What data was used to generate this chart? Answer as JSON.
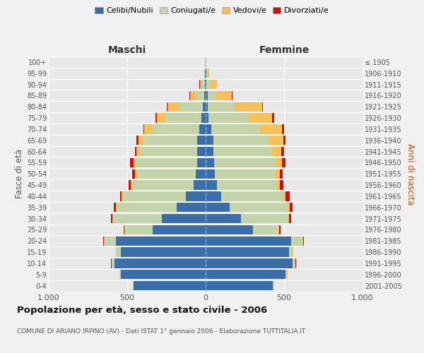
{
  "age_groups": [
    "0-4",
    "5-9",
    "10-14",
    "15-19",
    "20-24",
    "25-29",
    "30-34",
    "35-39",
    "40-44",
    "45-49",
    "50-54",
    "55-59",
    "60-64",
    "65-69",
    "70-74",
    "75-79",
    "80-84",
    "85-89",
    "90-94",
    "95-99",
    "100+"
  ],
  "birth_years": [
    "2001-2005",
    "1996-2000",
    "1991-1995",
    "1986-1990",
    "1981-1985",
    "1976-1980",
    "1971-1975",
    "1966-1970",
    "1961-1965",
    "1956-1960",
    "1951-1955",
    "1946-1950",
    "1941-1945",
    "1936-1940",
    "1931-1935",
    "1926-1930",
    "1921-1925",
    "1916-1920",
    "1911-1915",
    "1906-1910",
    "≤ 1905"
  ],
  "maschi": {
    "celibe": [
      460,
      540,
      580,
      540,
      570,
      340,
      280,
      185,
      125,
      78,
      62,
      56,
      52,
      55,
      40,
      28,
      18,
      10,
      5,
      3,
      2
    ],
    "coniugato": [
      5,
      10,
      20,
      30,
      75,
      175,
      310,
      380,
      400,
      390,
      380,
      390,
      370,
      340,
      300,
      230,
      150,
      50,
      18,
      5,
      2
    ],
    "vedovo": [
      0,
      1,
      1,
      2,
      5,
      3,
      5,
      5,
      10,
      8,
      10,
      15,
      20,
      35,
      50,
      55,
      75,
      40,
      15,
      2,
      0
    ],
    "divorziato": [
      0,
      0,
      1,
      2,
      5,
      5,
      10,
      15,
      10,
      15,
      18,
      20,
      10,
      10,
      8,
      5,
      3,
      2,
      2,
      0,
      0
    ]
  },
  "femmine": {
    "nubile": [
      430,
      510,
      555,
      530,
      545,
      300,
      225,
      155,
      100,
      70,
      58,
      52,
      48,
      50,
      35,
      20,
      15,
      12,
      5,
      3,
      2
    ],
    "coniugata": [
      5,
      10,
      18,
      25,
      70,
      165,
      300,
      370,
      395,
      385,
      385,
      390,
      370,
      345,
      310,
      250,
      170,
      55,
      20,
      5,
      2
    ],
    "vedova": [
      0,
      1,
      1,
      2,
      5,
      5,
      8,
      10,
      15,
      20,
      30,
      45,
      65,
      100,
      140,
      155,
      175,
      100,
      45,
      15,
      2
    ],
    "divorziata": [
      0,
      0,
      1,
      3,
      5,
      8,
      12,
      20,
      25,
      20,
      20,
      20,
      15,
      15,
      15,
      10,
      5,
      5,
      2,
      0,
      0
    ]
  },
  "colors": {
    "celibe": "#3a6ea8",
    "coniugato": "#c2d4a8",
    "vedovo": "#f5c05a",
    "divorziato": "#cc1111"
  },
  "xlim": 1000,
  "title": "Popolazione per età, sesso e stato civile - 2006",
  "subtitle": "COMUNE DI ARIANO IRPINO (AV) - Dati ISTAT 1° gennaio 2006 - Elaborazione TUTTITALIA.IT",
  "legend_labels": [
    "Celibi/Nubili",
    "Coniugati/e",
    "Vedovi/e",
    "Divorziati/e"
  ],
  "ylabel_left": "Fasce di età",
  "ylabel_right": "Anni di nascita",
  "xlabel_maschi": "Maschi",
  "xlabel_femmine": "Femmine",
  "bg_color": "#f0f0f0",
  "plot_bg": "#e8e8e8",
  "bar_height": 0.85
}
